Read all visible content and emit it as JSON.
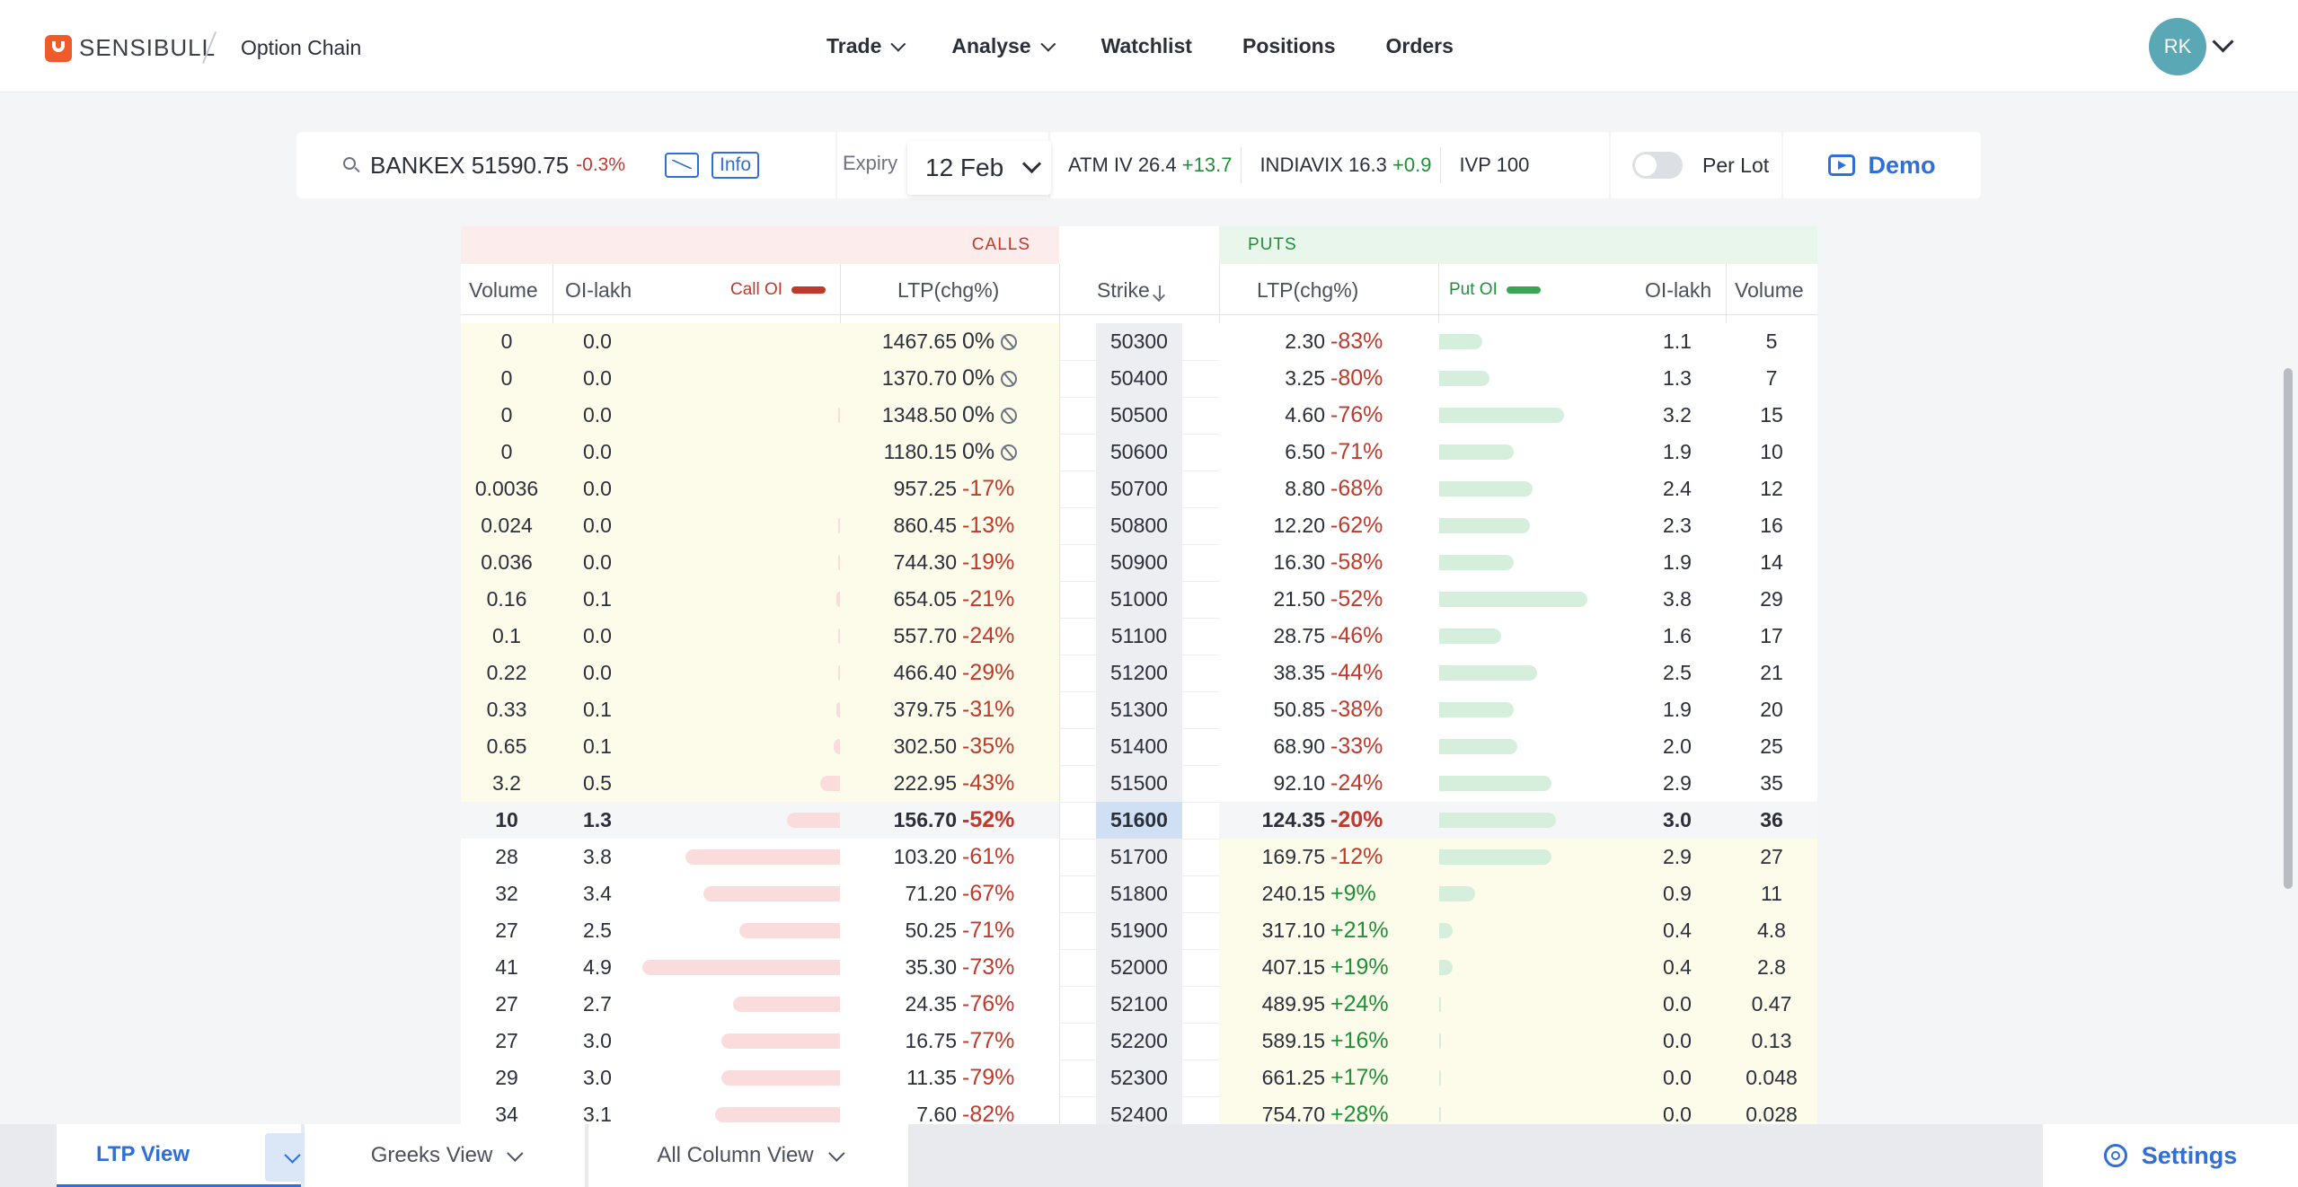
{
  "header": {
    "brand": "SENSIBULL",
    "page_title": "Option Chain",
    "nav": [
      {
        "label": "Trade",
        "dropdown": true
      },
      {
        "label": "Analyse",
        "dropdown": true
      },
      {
        "label": "Watchlist",
        "dropdown": false
      },
      {
        "label": "Positions",
        "dropdown": false
      },
      {
        "label": "Orders",
        "dropdown": false
      }
    ],
    "avatar_initials": "RK"
  },
  "toolbar": {
    "symbol": "BANKEX 51590.75",
    "symbol_change": "-0.3%",
    "info_label": "Info",
    "expiry_label": "Expiry",
    "expiry_value": "12 Feb",
    "atm_iv_label": "ATM IV 26.4",
    "atm_iv_change": "+13.7",
    "indiavix_label": "INDIAVIX 16.3",
    "indiavix_change": "+0.9",
    "ivp_label": "IVP 100",
    "per_lot_label": "Per Lot",
    "per_lot_on": false,
    "demo_label": "Demo"
  },
  "table": {
    "calls_label": "CALLS",
    "puts_label": "PUTS",
    "columns": {
      "call_volume": "Volume",
      "call_oi_lakh": "OI-lakh",
      "call_oi": "Call OI",
      "call_ltp": "LTP(chg%)",
      "strike": "Strike",
      "put_ltp": "LTP(chg%)",
      "put_oi": "Put OI",
      "put_oi_lakh": "OI-lakh",
      "put_volume": "Volume"
    },
    "atm_strike": "51600",
    "rows": [
      {
        "cv": "0",
        "coi": "0.0",
        "cltp": "1467.65",
        "cchg": "0%",
        "strike": "50300",
        "pltp": "2.30",
        "pchg": "-83%",
        "poi": "1.1",
        "pv": "5",
        "cbar": 0,
        "pbar": 0.29,
        "nochg": true
      },
      {
        "cv": "0",
        "coi": "0.0",
        "cltp": "1370.70",
        "cchg": "0%",
        "strike": "50400",
        "pltp": "3.25",
        "pchg": "-80%",
        "poi": "1.3",
        "pv": "7",
        "cbar": 0,
        "pbar": 0.34,
        "nochg": true
      },
      {
        "cv": "0",
        "coi": "0.0",
        "cltp": "1348.50",
        "cchg": "0%",
        "strike": "50500",
        "pltp": "4.60",
        "pchg": "-76%",
        "poi": "3.2",
        "pv": "15",
        "cbar": 0.01,
        "pbar": 0.84,
        "nochg": true
      },
      {
        "cv": "0",
        "coi": "0.0",
        "cltp": "1180.15",
        "cchg": "0%",
        "strike": "50600",
        "pltp": "6.50",
        "pchg": "-71%",
        "poi": "1.9",
        "pv": "10",
        "cbar": 0,
        "pbar": 0.5,
        "nochg": true
      },
      {
        "cv": "0.0036",
        "coi": "0.0",
        "cltp": "957.25",
        "cchg": "-17%",
        "strike": "50700",
        "pltp": "8.80",
        "pchg": "-68%",
        "poi": "2.4",
        "pv": "12",
        "cbar": 0,
        "pbar": 0.63
      },
      {
        "cv": "0.024",
        "coi": "0.0",
        "cltp": "860.45",
        "cchg": "-13%",
        "strike": "50800",
        "pltp": "12.20",
        "pchg": "-62%",
        "poi": "2.3",
        "pv": "16",
        "cbar": 0.01,
        "pbar": 0.61
      },
      {
        "cv": "0.036",
        "coi": "0.0",
        "cltp": "744.30",
        "cchg": "-19%",
        "strike": "50900",
        "pltp": "16.30",
        "pchg": "-58%",
        "poi": "1.9",
        "pv": "14",
        "cbar": 0.01,
        "pbar": 0.5
      },
      {
        "cv": "0.16",
        "coi": "0.1",
        "cltp": "654.05",
        "cchg": "-21%",
        "strike": "51000",
        "pltp": "21.50",
        "pchg": "-52%",
        "poi": "3.8",
        "pv": "29",
        "cbar": 0.02,
        "pbar": 1.0
      },
      {
        "cv": "0.1",
        "coi": "0.0",
        "cltp": "557.70",
        "cchg": "-24%",
        "strike": "51100",
        "pltp": "28.75",
        "pchg": "-46%",
        "poi": "1.6",
        "pv": "17",
        "cbar": 0.01,
        "pbar": 0.42
      },
      {
        "cv": "0.22",
        "coi": "0.0",
        "cltp": "466.40",
        "cchg": "-29%",
        "strike": "51200",
        "pltp": "38.35",
        "pchg": "-44%",
        "poi": "2.5",
        "pv": "21",
        "cbar": 0.01,
        "pbar": 0.66
      },
      {
        "cv": "0.33",
        "coi": "0.1",
        "cltp": "379.75",
        "cchg": "-31%",
        "strike": "51300",
        "pltp": "50.85",
        "pchg": "-38%",
        "poi": "1.9",
        "pv": "20",
        "cbar": 0.02,
        "pbar": 0.5
      },
      {
        "cv": "0.65",
        "coi": "0.1",
        "cltp": "302.50",
        "cchg": "-35%",
        "strike": "51400",
        "pltp": "68.90",
        "pchg": "-33%",
        "poi": "2.0",
        "pv": "25",
        "cbar": 0.03,
        "pbar": 0.53
      },
      {
        "cv": "3.2",
        "coi": "0.5",
        "cltp": "222.95",
        "cchg": "-43%",
        "strike": "51500",
        "pltp": "92.10",
        "pchg": "-24%",
        "poi": "2.9",
        "pv": "35",
        "cbar": 0.1,
        "pbar": 0.76
      },
      {
        "cv": "10",
        "coi": "1.3",
        "cltp": "156.70",
        "cchg": "-52%",
        "strike": "51600",
        "pltp": "124.35",
        "pchg": "-20%",
        "poi": "3.0",
        "pv": "36",
        "cbar": 0.27,
        "pbar": 0.79,
        "atm": true
      },
      {
        "cv": "28",
        "coi": "3.8",
        "cltp": "103.20",
        "cchg": "-61%",
        "strike": "51700",
        "pltp": "169.75",
        "pchg": "-12%",
        "poi": "2.9",
        "pv": "27",
        "cbar": 0.78,
        "pbar": 0.76
      },
      {
        "cv": "32",
        "coi": "3.4",
        "cltp": "71.20",
        "cchg": "-67%",
        "strike": "51800",
        "pltp": "240.15",
        "pchg": "+9%",
        "poi": "0.9",
        "pv": "11",
        "cbar": 0.69,
        "pbar": 0.24
      },
      {
        "cv": "27",
        "coi": "2.5",
        "cltp": "50.25",
        "cchg": "-71%",
        "strike": "51900",
        "pltp": "317.10",
        "pchg": "+21%",
        "poi": "0.4",
        "pv": "4.8",
        "cbar": 0.51,
        "pbar": 0.09
      },
      {
        "cv": "41",
        "coi": "4.9",
        "cltp": "35.30",
        "cchg": "-73%",
        "strike": "52000",
        "pltp": "407.15",
        "pchg": "+19%",
        "poi": "0.4",
        "pv": "2.8",
        "cbar": 1.0,
        "pbar": 0.09
      },
      {
        "cv": "27",
        "coi": "2.7",
        "cltp": "24.35",
        "cchg": "-76%",
        "strike": "52100",
        "pltp": "489.95",
        "pchg": "+24%",
        "poi": "0.0",
        "pv": "0.47",
        "cbar": 0.54,
        "pbar": 0.01
      },
      {
        "cv": "27",
        "coi": "3.0",
        "cltp": "16.75",
        "cchg": "-77%",
        "strike": "52200",
        "pltp": "589.15",
        "pchg": "+16%",
        "poi": "0.0",
        "pv": "0.13",
        "cbar": 0.6,
        "pbar": 0.01
      },
      {
        "cv": "29",
        "coi": "3.0",
        "cltp": "11.35",
        "cchg": "-79%",
        "strike": "52300",
        "pltp": "661.25",
        "pchg": "+17%",
        "poi": "0.0",
        "pv": "0.048",
        "cbar": 0.6,
        "pbar": 0.01
      },
      {
        "cv": "34",
        "coi": "3.1",
        "cltp": "7.60",
        "cchg": "-82%",
        "strike": "52400",
        "pltp": "754.70",
        "pchg": "+28%",
        "poi": "0.0",
        "pv": "0.028",
        "cbar": 0.63,
        "pbar": 0.01
      }
    ]
  },
  "bottom_bar": {
    "ltp_view": "LTP View",
    "greeks_view": "Greeks View",
    "all_column_view": "All Column View",
    "settings": "Settings"
  },
  "colors": {
    "accent": "#2f6fd6",
    "negative": "#c0392b",
    "positive": "#1f8f3a",
    "brand": "#f15a29"
  }
}
